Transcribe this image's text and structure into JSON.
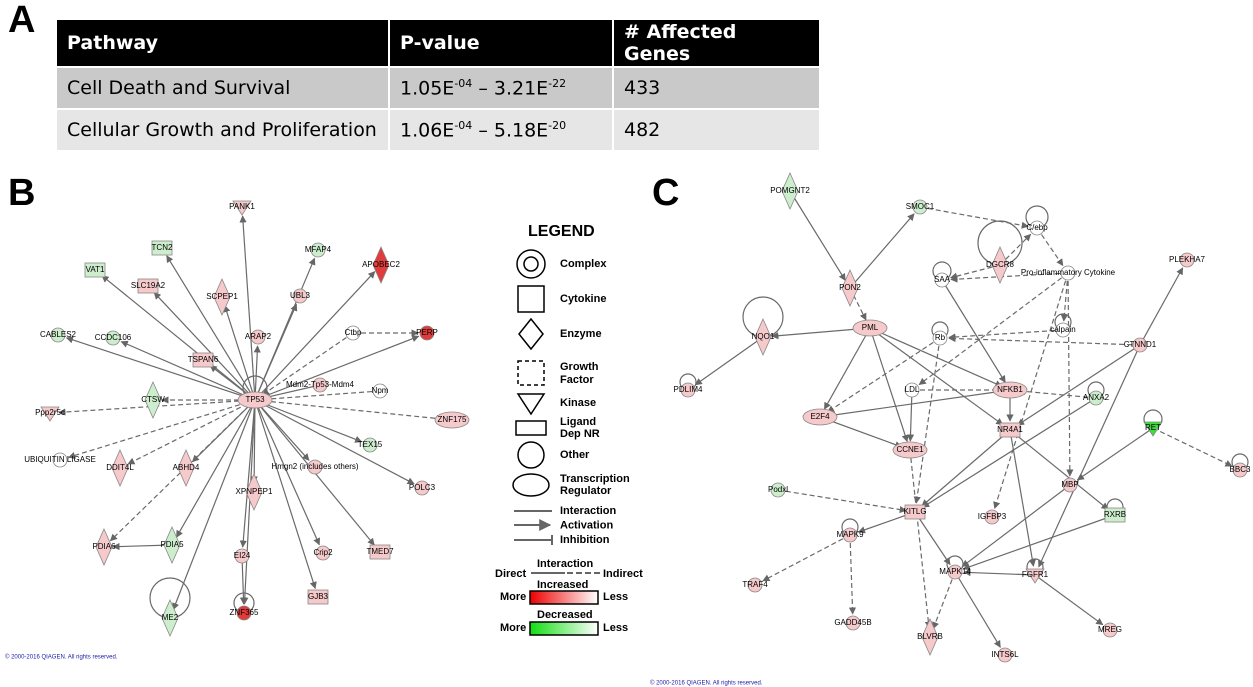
{
  "panels": {
    "a": "A",
    "b": "B",
    "c": "C"
  },
  "table": {
    "header": [
      "Pathway",
      "P-value",
      "# Affected Genes"
    ],
    "rows": [
      [
        "Cell Death and Survival",
        [
          "1.05E",
          "-04",
          " – 3.21E",
          "-22"
        ],
        "433"
      ],
      [
        "Cellular Growth and Proliferation",
        [
          "1.06E",
          "-04",
          " – 5.18E",
          "-20"
        ],
        "482"
      ]
    ]
  },
  "network_b": {
    "nodes": [
      "TCN2",
      "PANK1",
      "MFAP4",
      "APOBEC2",
      "VAT1",
      "SCPEP1",
      "UBL3",
      "SLC19A2",
      "CABLES2",
      "CCDC106",
      "TSPAN6",
      "ARAP2",
      "Ctbp",
      "PERP",
      "Mdm2-Tp53-Mdm4",
      "Npm",
      "TP53",
      "CTSW",
      "Ppp2r5c",
      "ZNF175",
      "TEX15",
      "DDIT4L",
      "ABHD4",
      "Hmgn2 (includes others)",
      "UBIQUITIN LIGASE",
      "XPNPEP1",
      "POLC3",
      "PDIA6",
      "PDIA5",
      "EI24",
      "Crip2",
      "TMED7",
      "ME2",
      "ZNF365",
      "GJB3"
    ]
  },
  "network_c": {
    "nodes": [
      "POMGNT2",
      "SMOC1",
      "C/ebp",
      "PON2",
      "DGCR8",
      "SAA",
      "Pro-inflammatory Cytokine",
      "PLEKHA7",
      "PML",
      "NQO1",
      "calpain",
      "Rb",
      "CTNND1",
      "LDL",
      "NFKB1",
      "ANXA2",
      "E2F4",
      "PDLIM4",
      "RET",
      "CCNE1",
      "NR4A1",
      "BBC3",
      "Podxl",
      "MBP",
      "KITLG",
      "IGFBP3",
      "RXRB",
      "MAPK9",
      "MAPK14",
      "FGFR1",
      "TRAF4",
      "GADD45B",
      "BLVRB",
      "INTS6L",
      "MREG"
    ]
  },
  "legend": {
    "title": "LEGEND",
    "shapes": [
      [
        "Complex"
      ],
      [
        "Cytokine"
      ],
      [
        "Enzyme"
      ],
      [
        "Growth",
        "Factor"
      ],
      [
        "Kinase"
      ],
      [
        "Ligand",
        "Dep NR"
      ],
      [
        "Other"
      ],
      [
        "Transcription",
        "Regulator"
      ]
    ],
    "edges": [
      "Interaction",
      "Activation",
      "Inhibition"
    ],
    "style": {
      "direct": "Direct",
      "interaction": "Interaction",
      "indirect": "Indirect"
    },
    "increased": {
      "title": "Increased",
      "more": "More",
      "less": "Less"
    },
    "decreased": {
      "title": "Decreased",
      "more": "More",
      "less": "Less"
    }
  },
  "copyright": [
    "© 2000-2016 QIAGEN. All rights reserved.",
    "© 2000-2016 QIAGEN. All rights reserved."
  ]
}
